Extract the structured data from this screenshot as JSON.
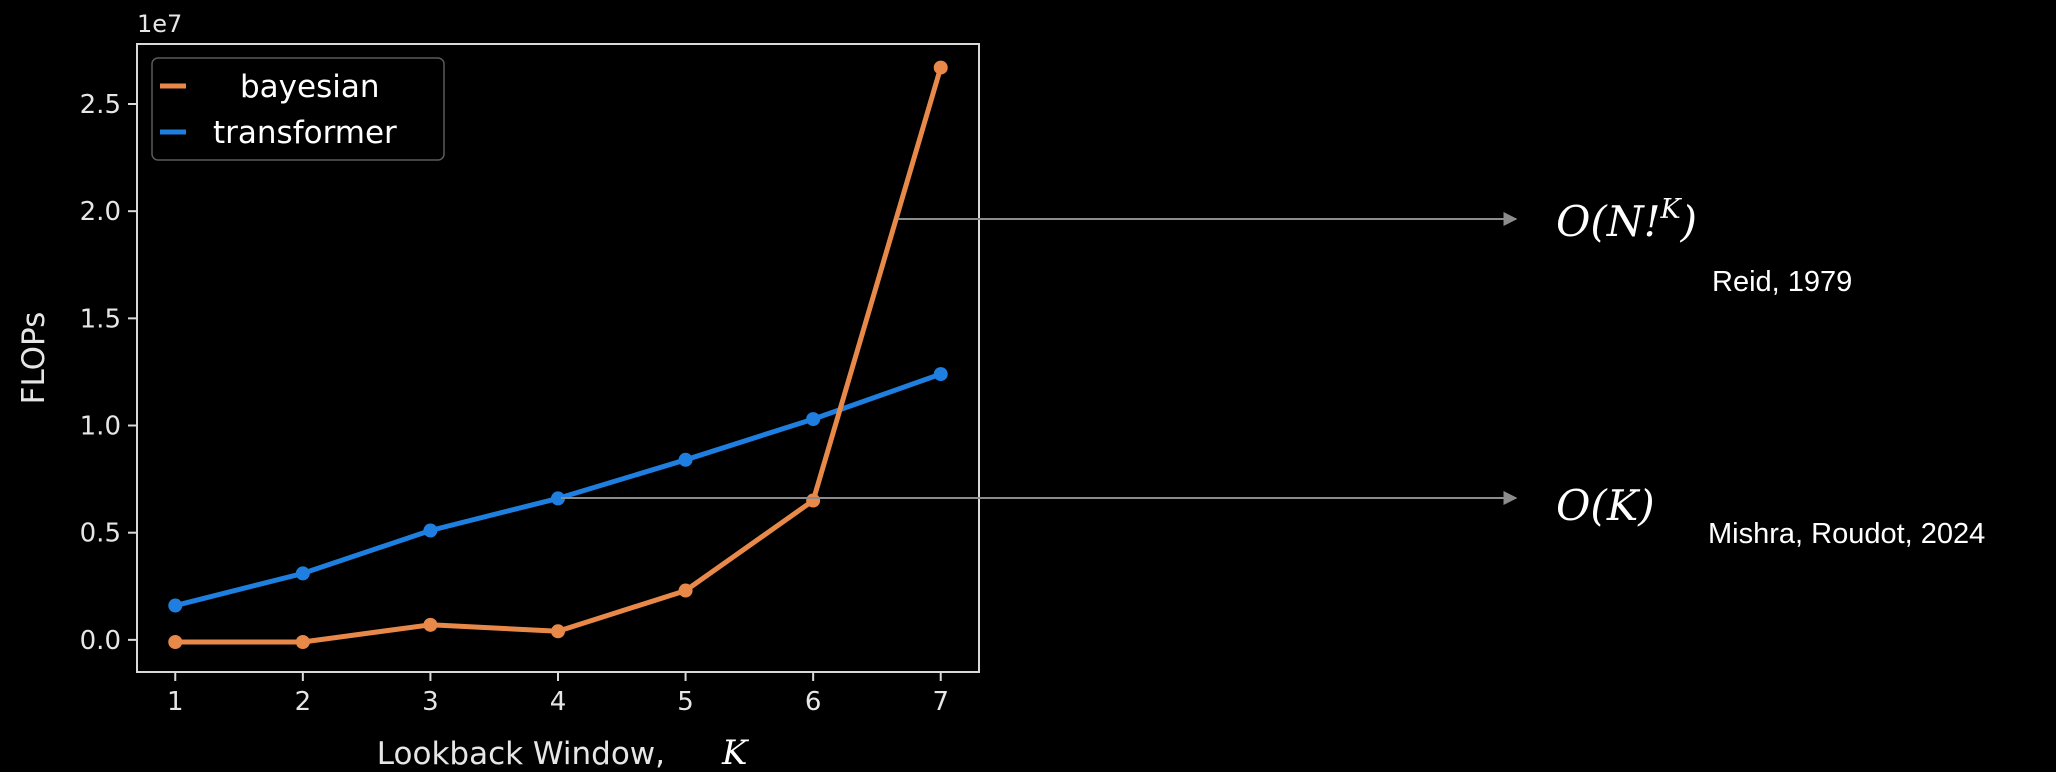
{
  "chart_data": {
    "type": "line",
    "x": [
      1,
      2,
      3,
      4,
      5,
      6,
      7
    ],
    "xticks": [
      "1",
      "2",
      "3",
      "4",
      "5",
      "6",
      "7"
    ],
    "yticks": [
      "0.0",
      "0.5",
      "1.0",
      "1.5",
      "2.0",
      "2.5"
    ],
    "ytick_values": [
      0.0,
      0.5,
      1.0,
      1.5,
      2.0,
      2.5
    ],
    "xlim": [
      0.7,
      7.3
    ],
    "ylim": [
      -0.15,
      2.78
    ],
    "y_scale_note": "1e7",
    "xlabel": "Lookback Window,",
    "xlabel_var": "K",
    "ylabel": "FLOPs",
    "legend_position": "top-left",
    "grid": false,
    "series": [
      {
        "name": "bayesian",
        "color": "#e8894a",
        "values": [
          -0.01,
          -0.01,
          0.07,
          0.04,
          0.23,
          0.65,
          2.67
        ]
      },
      {
        "name": "transformer",
        "color": "#1f7fe0",
        "values": [
          0.16,
          0.31,
          0.51,
          0.66,
          0.84,
          1.03,
          1.24
        ]
      }
    ]
  },
  "annotations": [
    {
      "math_main": "O(N!",
      "math_sup": "K",
      "math_close": ")",
      "citation": "Reid, 1979"
    },
    {
      "math_main": "O(K)",
      "citation": "Mishra, Roudot, 2024"
    }
  ],
  "colors": {
    "background": "#000000",
    "axes": "#d9d9d9",
    "arrow": "#8c8c8c"
  }
}
